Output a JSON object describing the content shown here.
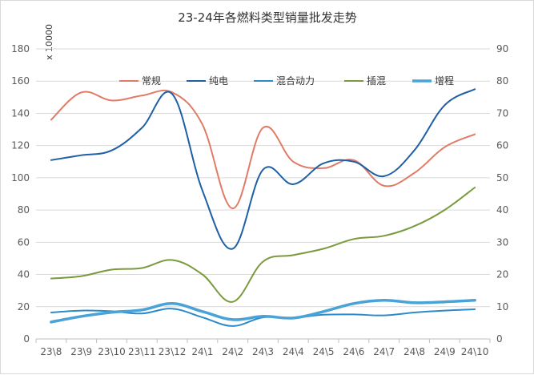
{
  "chart_data": {
    "type": "line",
    "title": "23-24年各燃料类型销量批发走势",
    "y_unit_label": "x 10000",
    "categories": [
      "23\\8",
      "23\\9",
      "23\\10",
      "23\\11",
      "23\\12",
      "24\\1",
      "24\\2",
      "24\\3",
      "24\\4",
      "24\\5",
      "24\\6",
      "24\\7",
      "24\\8",
      "24\\9",
      "24\\10"
    ],
    "ylim": [
      0,
      180
    ],
    "yticks": [
      0,
      20,
      40,
      60,
      80,
      100,
      120,
      140,
      160,
      180
    ],
    "y2lim": [
      0,
      90
    ],
    "y2ticks": [
      0,
      10,
      20,
      30,
      40,
      50,
      60,
      70,
      80,
      90
    ],
    "grid": true,
    "legend_position": "top",
    "series": [
      {
        "name": "常规",
        "axis": "left",
        "color": "#e07b67",
        "width": 2,
        "values": [
          136,
          153,
          148,
          151,
          153,
          133,
          81,
          131,
          110,
          106,
          111,
          95,
          103,
          119,
          127
        ]
      },
      {
        "name": "纯电",
        "axis": "left",
        "color": "#1f5fa3",
        "width": 2,
        "values": [
          111,
          114,
          117,
          131,
          152,
          92,
          56,
          105,
          96,
          109,
          110,
          101,
          117,
          145,
          155
        ]
      },
      {
        "name": "混合动力",
        "axis": "right",
        "color": "#2e8bc9",
        "width": 2,
        "values": [
          8.2,
          8.8,
          8.6,
          7.9,
          9.4,
          6.7,
          4.0,
          6.7,
          6.6,
          7.5,
          7.6,
          7.3,
          8.2,
          8.8,
          9.2
        ]
      },
      {
        "name": "插混",
        "axis": "left",
        "color": "#7a9a3e",
        "width": 2,
        "values": [
          37.5,
          39,
          43,
          44,
          49,
          40,
          23,
          48,
          52,
          56,
          62,
          64,
          70,
          80,
          94
        ]
      },
      {
        "name": "增程",
        "axis": "left",
        "color": "#4aa3d6",
        "width": 3.5,
        "values": [
          10.5,
          14,
          16.5,
          18,
          22,
          17,
          12,
          14,
          13,
          17,
          22,
          24,
          22.5,
          23,
          24
        ]
      }
    ]
  }
}
